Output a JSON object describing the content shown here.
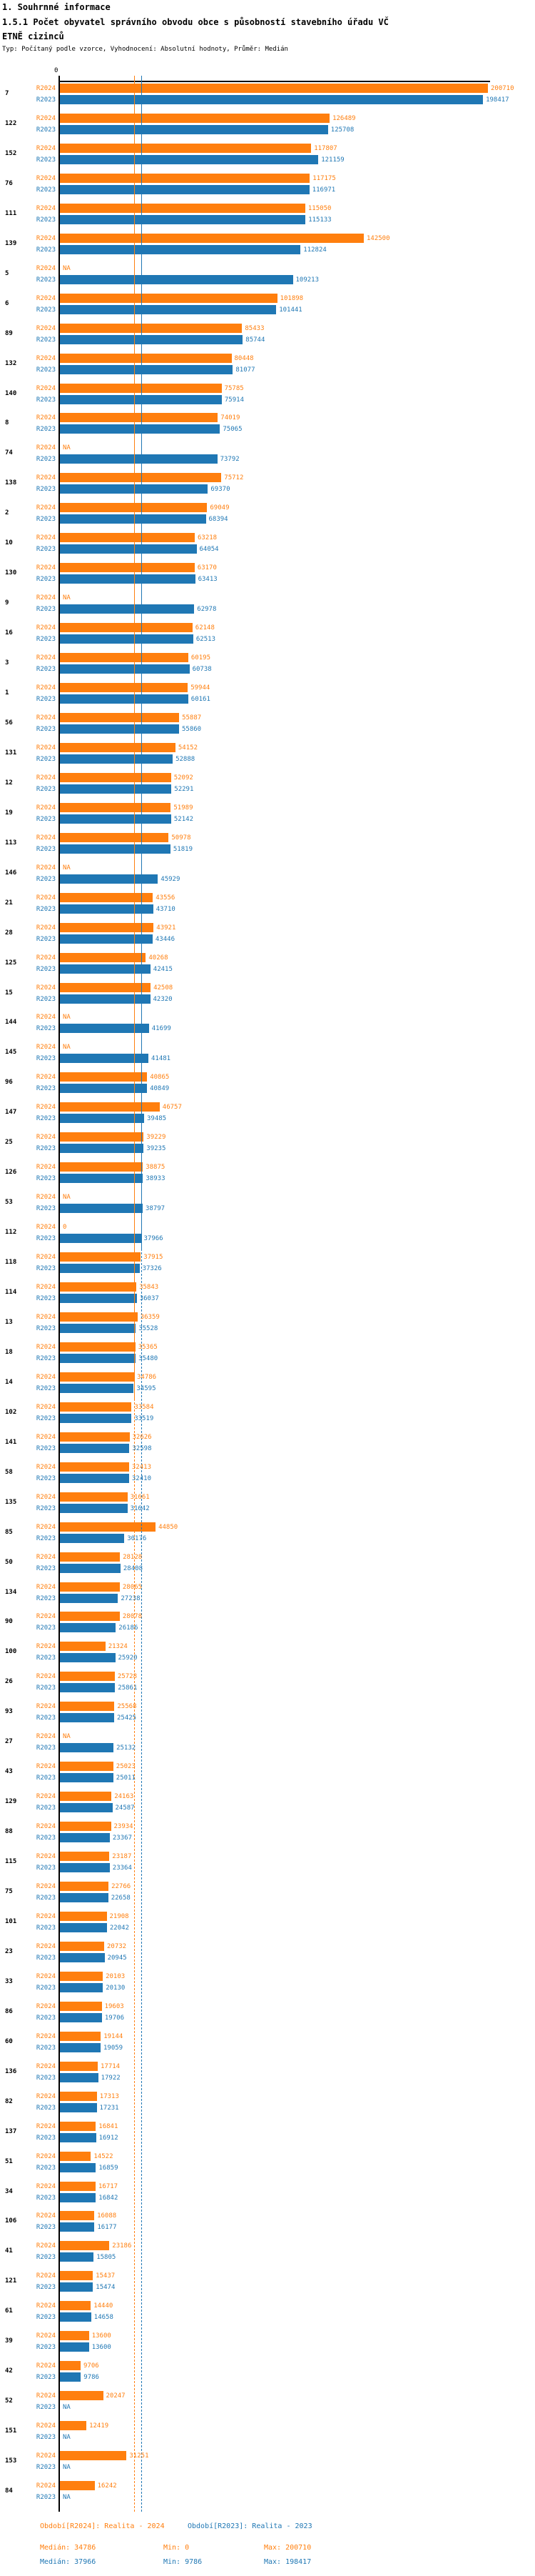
{
  "title": "1. Souhrnné informace",
  "subtitle": "1.5.1 Počet obyvatel správního obvodu obce s působností stavebního úřadu VČETNĚ cizinců",
  "type_line": "Typ: Počítaný podle vzorce, Vyhodnocení: Absolutní hodnoty, Průměr: Medián",
  "colors": {
    "r2024": "#FF7F0E",
    "r2023": "#1F77B4",
    "axis": "#000000",
    "background": "#ffffff"
  },
  "chart_data": {
    "type": "bar",
    "orientation": "horizontal",
    "grid": false,
    "legend_position": "bottom",
    "series_labels": {
      "r2024": "R2024",
      "r2023": "R2023"
    },
    "axis": {
      "zero_label": "0",
      "xlim": [
        0,
        200710
      ]
    },
    "medians": {
      "r2024": 34786,
      "r2023": 37966
    },
    "rows": [
      {
        "id": "7",
        "r2024": 200710,
        "r2023": 198417
      },
      {
        "id": "122",
        "r2024": 126489,
        "r2023": 125708
      },
      {
        "id": "152",
        "r2024": 117807,
        "r2023": 121159
      },
      {
        "id": "76",
        "r2024": 117175,
        "r2023": 116971
      },
      {
        "id": "111",
        "r2024": 115050,
        "r2023": 115133
      },
      {
        "id": "139",
        "r2024": 142500,
        "r2023": 112824
      },
      {
        "id": "5",
        "r2024": "NA",
        "r2023": 109213
      },
      {
        "id": "6",
        "r2024": 101898,
        "r2023": 101441
      },
      {
        "id": "89",
        "r2024": 85433,
        "r2023": 85744
      },
      {
        "id": "132",
        "r2024": 80448,
        "r2023": 81077
      },
      {
        "id": "140",
        "r2024": 75785,
        "r2023": 75914
      },
      {
        "id": "8",
        "r2024": 74019,
        "r2023": 75065
      },
      {
        "id": "74",
        "r2024": "NA",
        "r2023": 73792
      },
      {
        "id": "138",
        "r2024": 75712,
        "r2023": 69370
      },
      {
        "id": "2",
        "r2024": 69049,
        "r2023": 68394
      },
      {
        "id": "10",
        "r2024": 63218,
        "r2023": 64054
      },
      {
        "id": "130",
        "r2024": 63170,
        "r2023": 63413
      },
      {
        "id": "9",
        "r2024": "NA",
        "r2023": 62978
      },
      {
        "id": "16",
        "r2024": 62148,
        "r2023": 62513
      },
      {
        "id": "3",
        "r2024": 60195,
        "r2023": 60738
      },
      {
        "id": "1",
        "r2024": 59944,
        "r2023": 60161
      },
      {
        "id": "56",
        "r2024": 55887,
        "r2023": 55860
      },
      {
        "id": "131",
        "r2024": 54152,
        "r2023": 52888
      },
      {
        "id": "12",
        "r2024": 52092,
        "r2023": 52291
      },
      {
        "id": "19",
        "r2024": 51989,
        "r2023": 52142
      },
      {
        "id": "113",
        "r2024": 50978,
        "r2023": 51819
      },
      {
        "id": "146",
        "r2024": "NA",
        "r2023": 45929
      },
      {
        "id": "21",
        "r2024": 43556,
        "r2023": 43710
      },
      {
        "id": "28",
        "r2024": 43921,
        "r2023": 43446
      },
      {
        "id": "125",
        "r2024": 40268,
        "r2023": 42415
      },
      {
        "id": "15",
        "r2024": 42508,
        "r2023": 42320
      },
      {
        "id": "144",
        "r2024": "NA",
        "r2023": 41699
      },
      {
        "id": "145",
        "r2024": "NA",
        "r2023": 41481
      },
      {
        "id": "96",
        "r2024": 40865,
        "r2023": 40849
      },
      {
        "id": "147",
        "r2024": 46757,
        "r2023": 39485
      },
      {
        "id": "25",
        "r2024": 39229,
        "r2023": 39235
      },
      {
        "id": "126",
        "r2024": 38875,
        "r2023": 38933
      },
      {
        "id": "53",
        "r2024": "NA",
        "r2023": 38797
      },
      {
        "id": "112",
        "r2024": 0,
        "r2023": 37966
      },
      {
        "id": "118",
        "r2024": 37915,
        "r2023": 37326
      },
      {
        "id": "114",
        "r2024": 35843,
        "r2023": 36037
      },
      {
        "id": "13",
        "r2024": 36359,
        "r2023": 35528
      },
      {
        "id": "18",
        "r2024": 35365,
        "r2023": 35480
      },
      {
        "id": "14",
        "r2024": 34786,
        "r2023": 34595
      },
      {
        "id": "102",
        "r2024": 33584,
        "r2023": 33519
      },
      {
        "id": "141",
        "r2024": 32626,
        "r2023": 32598
      },
      {
        "id": "58",
        "r2024": 32413,
        "r2023": 32410
      },
      {
        "id": "135",
        "r2024": 31661,
        "r2023": 31642
      },
      {
        "id": "85",
        "r2024": 44850,
        "r2023": 30176
      },
      {
        "id": "50",
        "r2024": 28128,
        "r2023": 28408
      },
      {
        "id": "134",
        "r2024": 28065,
        "r2023": 27238
      },
      {
        "id": "90",
        "r2024": 28078,
        "r2023": 26186
      },
      {
        "id": "100",
        "r2024": 21324,
        "r2023": 25920
      },
      {
        "id": "26",
        "r2024": 25728,
        "r2023": 25861
      },
      {
        "id": "93",
        "r2024": 25568,
        "r2023": 25425
      },
      {
        "id": "27",
        "r2024": "NA",
        "r2023": 25132
      },
      {
        "id": "43",
        "r2024": 25023,
        "r2023": 25011
      },
      {
        "id": "129",
        "r2024": 24163,
        "r2023": 24587
      },
      {
        "id": "88",
        "r2024": 23934,
        "r2023": 23367
      },
      {
        "id": "115",
        "r2024": 23187,
        "r2023": 23364
      },
      {
        "id": "75",
        "r2024": 22766,
        "r2023": 22658
      },
      {
        "id": "101",
        "r2024": 21908,
        "r2023": 22042
      },
      {
        "id": "23",
        "r2024": 20732,
        "r2023": 20945
      },
      {
        "id": "33",
        "r2024": 20103,
        "r2023": 20130
      },
      {
        "id": "86",
        "r2024": 19603,
        "r2023": 19706
      },
      {
        "id": "60",
        "r2024": 19144,
        "r2023": 19059
      },
      {
        "id": "136",
        "r2024": 17714,
        "r2023": 17922
      },
      {
        "id": "82",
        "r2024": 17313,
        "r2023": 17231
      },
      {
        "id": "137",
        "r2024": 16841,
        "r2023": 16912
      },
      {
        "id": "51",
        "r2024": 14522,
        "r2023": 16859
      },
      {
        "id": "34",
        "r2024": 16717,
        "r2023": 16842
      },
      {
        "id": "106",
        "r2024": 16088,
        "r2023": 16177
      },
      {
        "id": "41",
        "r2024": 23186,
        "r2023": 15805
      },
      {
        "id": "121",
        "r2024": 15437,
        "r2023": 15474
      },
      {
        "id": "61",
        "r2024": 14440,
        "r2023": 14658
      },
      {
        "id": "39",
        "r2024": 13600,
        "r2023": 13600
      },
      {
        "id": "42",
        "r2024": 9706,
        "r2023": 9786
      },
      {
        "id": "52",
        "r2024": 20247,
        "r2023": "NA"
      },
      {
        "id": "151",
        "r2024": 12419,
        "r2023": "NA"
      },
      {
        "id": "153",
        "r2024": 31251,
        "r2023": "NA"
      },
      {
        "id": "84",
        "r2024": 16242,
        "r2023": "NA"
      }
    ]
  },
  "footer": {
    "legend_r2024": "Období[R2024]: Realita - 2024",
    "legend_r2023": "Období[R2023]: Realita - 2023",
    "stats_r2024": {
      "median": "Medián: 34786",
      "min": "Min: 0",
      "max": "Max: 200710"
    },
    "stats_r2023": {
      "median": "Medián: 37966",
      "min": "Min: 9786",
      "max": "Max: 198417"
    }
  }
}
